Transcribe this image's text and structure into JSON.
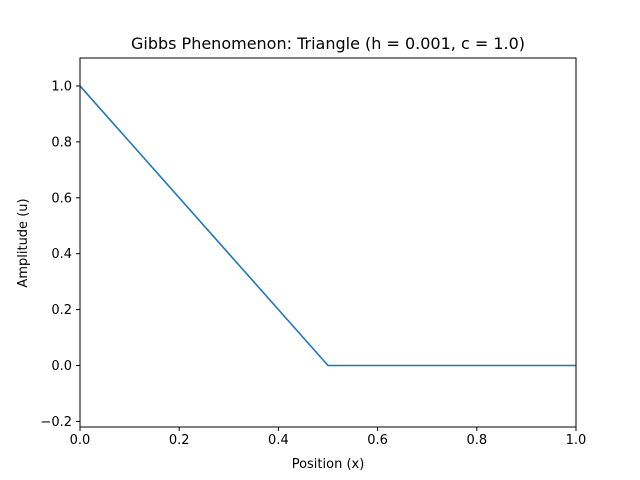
{
  "chart_data": {
    "type": "line",
    "title": "Gibbs Phenomenon: Triangle (h = 0.001, c = 1.0)",
    "xlabel": "Position (x)",
    "ylabel": "Amplitude (u)",
    "xlim": [
      0,
      1
    ],
    "ylim": [
      -0.22,
      1.1
    ],
    "xticks": [
      0,
      0.2,
      0.4,
      0.6,
      0.8,
      1.0
    ],
    "xtick_labels": [
      "0.0",
      "0.2",
      "0.4",
      "0.6",
      "0.8",
      "1.0"
    ],
    "yticks": [
      -0.2,
      0,
      0.2,
      0.4,
      0.6,
      0.8,
      1.0
    ],
    "ytick_labels": [
      "−0.2",
      "0.0",
      "0.2",
      "0.4",
      "0.6",
      "0.8",
      "1.0"
    ],
    "grid": false,
    "series": [
      {
        "color": "#1f77b4",
        "x": [
          0,
          0.5,
          1.0
        ],
        "y": [
          1.0,
          0.0,
          0.0
        ]
      }
    ]
  }
}
